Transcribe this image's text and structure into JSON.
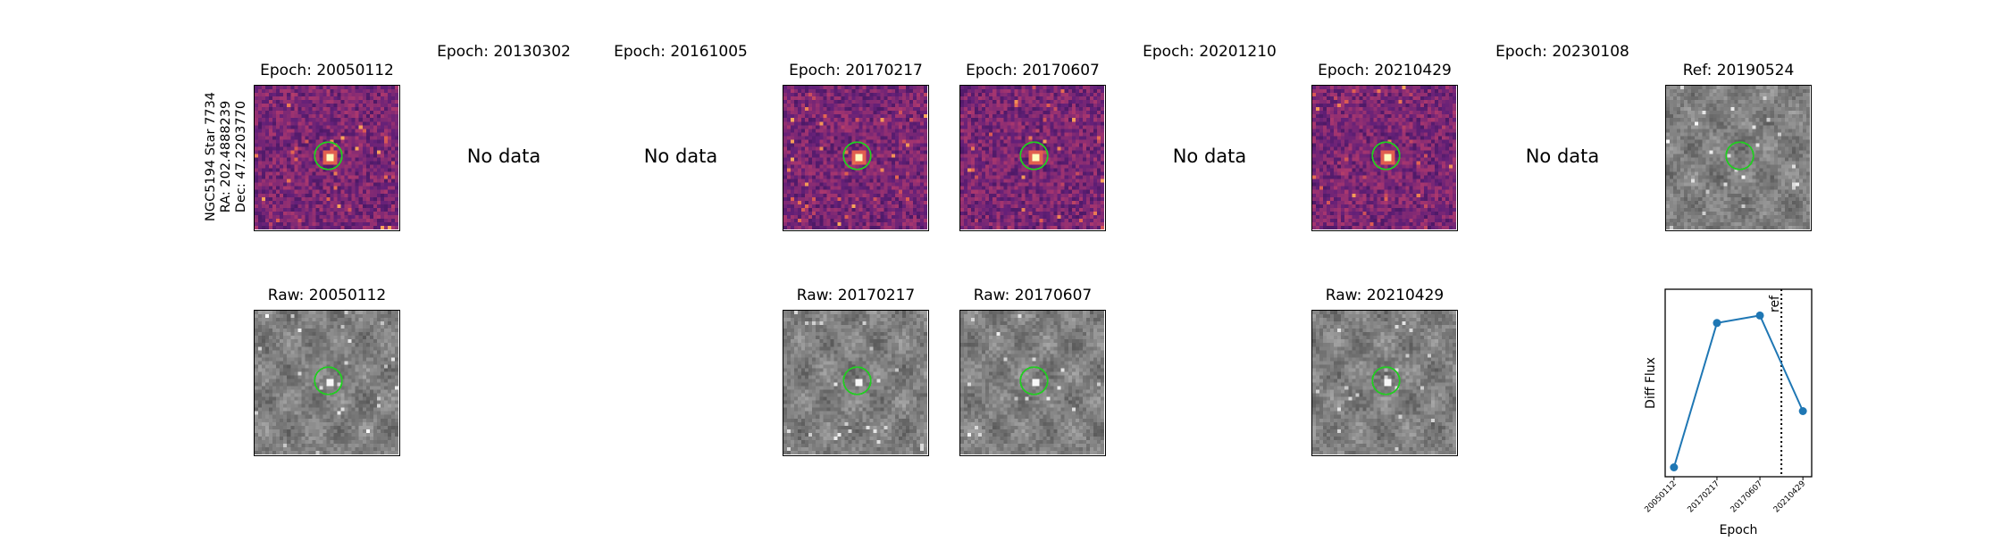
{
  "target_label": [
    "NGC5194 Star 7734",
    "RA: 202.4888239",
    "Dec: 47.2203770"
  ],
  "no_data_label": "No data",
  "diff_row": [
    {
      "title": "Epoch: 20050112",
      "has_data": true,
      "seed": 11
    },
    {
      "title": "Epoch: 20130302",
      "has_data": false
    },
    {
      "title": "Epoch: 20161005",
      "has_data": false
    },
    {
      "title": "Epoch: 20170217",
      "has_data": true,
      "seed": 23
    },
    {
      "title": "Epoch: 20170607",
      "has_data": true,
      "seed": 37
    },
    {
      "title": "Epoch: 20201210",
      "has_data": false
    },
    {
      "title": "Epoch: 20210429",
      "has_data": true,
      "seed": 51
    },
    {
      "title": "Epoch: 20230108",
      "has_data": false
    }
  ],
  "ref_panel": {
    "title": "Ref: 20190524",
    "seed": 77
  },
  "raw_row": [
    {
      "title": "Raw: 20050112",
      "slot": 0,
      "seed": 101
    },
    {
      "title": "Raw: 20170217",
      "slot": 3,
      "seed": 103
    },
    {
      "title": "Raw: 20170607",
      "slot": 4,
      "seed": 107
    },
    {
      "title": "Raw: 20210429",
      "slot": 6,
      "seed": 109
    }
  ],
  "colors": {
    "marker_circle": "#22cc22",
    "line": "#1f77b4",
    "diff_colormap": "magma",
    "raw_colormap": "gray"
  },
  "chart_data": {
    "type": "line",
    "x": [
      "20050112",
      "20170217",
      "20170607",
      "20210429"
    ],
    "y": [
      0.05,
      0.82,
      0.86,
      0.35
    ],
    "xlabel": "Epoch",
    "ylabel": "Diff Flux",
    "reference_line": {
      "label": "ref",
      "position_between": [
        "20170607",
        "20210429"
      ],
      "fraction": 0.5,
      "style": "dotted"
    },
    "y_ticks_visible": false,
    "grid": false
  }
}
